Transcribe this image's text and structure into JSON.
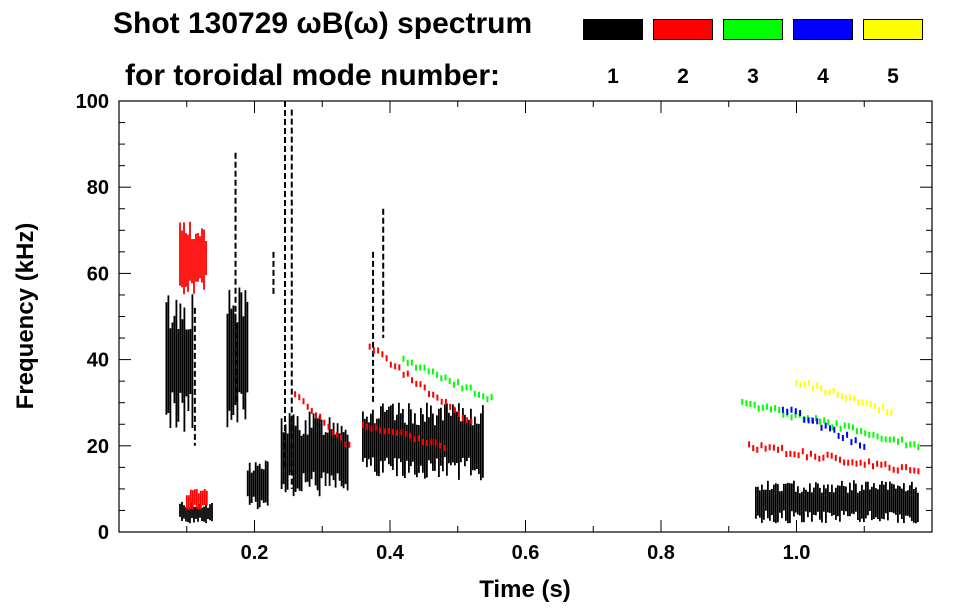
{
  "title": {
    "line1": "Shot 130729 ωB(ω) spectrum",
    "line2": "for toroidal mode number:"
  },
  "legend": [
    {
      "label": "1",
      "color": "#000000"
    },
    {
      "label": "2",
      "color": "#ff0000"
    },
    {
      "label": "3",
      "color": "#00ff00"
    },
    {
      "label": "4",
      "color": "#0000ff"
    },
    {
      "label": "5",
      "color": "#ffff00"
    }
  ],
  "chart_data": {
    "type": "spectrogram",
    "title": "Shot 130729 ωB(ω) spectrum for toroidal mode number",
    "xlabel": "Time (s)",
    "ylabel": "Frequency (kHz)",
    "xlim": [
      0.0,
      1.2
    ],
    "ylim": [
      0,
      100
    ],
    "x_ticks": [
      0.2,
      0.4,
      0.6,
      0.8,
      1.0
    ],
    "x_tick_labels": [
      "0.2",
      "0.4",
      "0.6",
      "0.8",
      "1.0"
    ],
    "y_ticks": [
      0,
      20,
      40,
      60,
      80,
      100
    ],
    "y_tick_labels": [
      "0",
      "20",
      "40",
      "60",
      "80",
      "100"
    ],
    "grid": false,
    "series": [
      {
        "name": "n=1",
        "color": "#000000",
        "blobs": [
          {
            "t": [
              0.07,
              0.11
            ],
            "f": [
              23,
              56
            ]
          },
          {
            "t": [
              0.16,
              0.19
            ],
            "f": [
              22,
              57
            ]
          },
          {
            "t": [
              0.19,
              0.22
            ],
            "f": [
              5,
              17
            ]
          },
          {
            "t": [
              0.24,
              0.34
            ],
            "f": [
              8,
              28
            ]
          },
          {
            "t": [
              0.36,
              0.54
            ],
            "f": [
              12,
              30
            ]
          },
          {
            "t": [
              0.09,
              0.14
            ],
            "f": [
              2,
              7
            ]
          },
          {
            "t": [
              0.94,
              1.18
            ],
            "f": [
              2,
              12
            ]
          }
        ],
        "streaks": [
          {
            "t": 0.172,
            "f": [
              30,
              88
            ]
          },
          {
            "t": 0.255,
            "f": [
              10,
              98
            ]
          },
          {
            "t": 0.245,
            "f": [
              15,
              100
            ]
          },
          {
            "t": 0.39,
            "f": [
              45,
              75
            ]
          },
          {
            "t": 0.375,
            "f": [
              30,
              65
            ]
          },
          {
            "t": 0.112,
            "f": [
              20,
              52
            ]
          },
          {
            "t": 0.228,
            "f": [
              55,
              65
            ]
          }
        ]
      },
      {
        "name": "n=2",
        "color": "#ff0000",
        "tracks": [
          {
            "t": [
              0.37,
              0.52
            ],
            "f": [
              43,
              25
            ]
          },
          {
            "t": [
              0.26,
              0.34
            ],
            "f": [
              32,
              20
            ]
          },
          {
            "t": [
              0.36,
              0.48
            ],
            "f": [
              25,
              20
            ]
          },
          {
            "t": [
              0.93,
              1.18
            ],
            "f": [
              20,
              14
            ]
          }
        ],
        "blobs": [
          {
            "t": [
              0.09,
              0.13
            ],
            "f": [
              55,
              72
            ]
          },
          {
            "t": [
              0.1,
              0.13
            ],
            "f": [
              5,
              10
            ]
          }
        ]
      },
      {
        "name": "n=3",
        "color": "#00ff00",
        "tracks": [
          {
            "t": [
              0.42,
              0.55
            ],
            "f": [
              40,
              31
            ]
          },
          {
            "t": [
              0.92,
              1.18
            ],
            "f": [
              30,
              20
            ]
          }
        ]
      },
      {
        "name": "n=4",
        "color": "#0000ff",
        "tracks": [
          {
            "t": [
              0.98,
              1.1
            ],
            "f": [
              29,
              20
            ]
          }
        ]
      },
      {
        "name": "n=5",
        "color": "#ffff00",
        "tracks": [
          {
            "t": [
              1.0,
              1.14
            ],
            "f": [
              35,
              28
            ]
          }
        ]
      }
    ]
  }
}
